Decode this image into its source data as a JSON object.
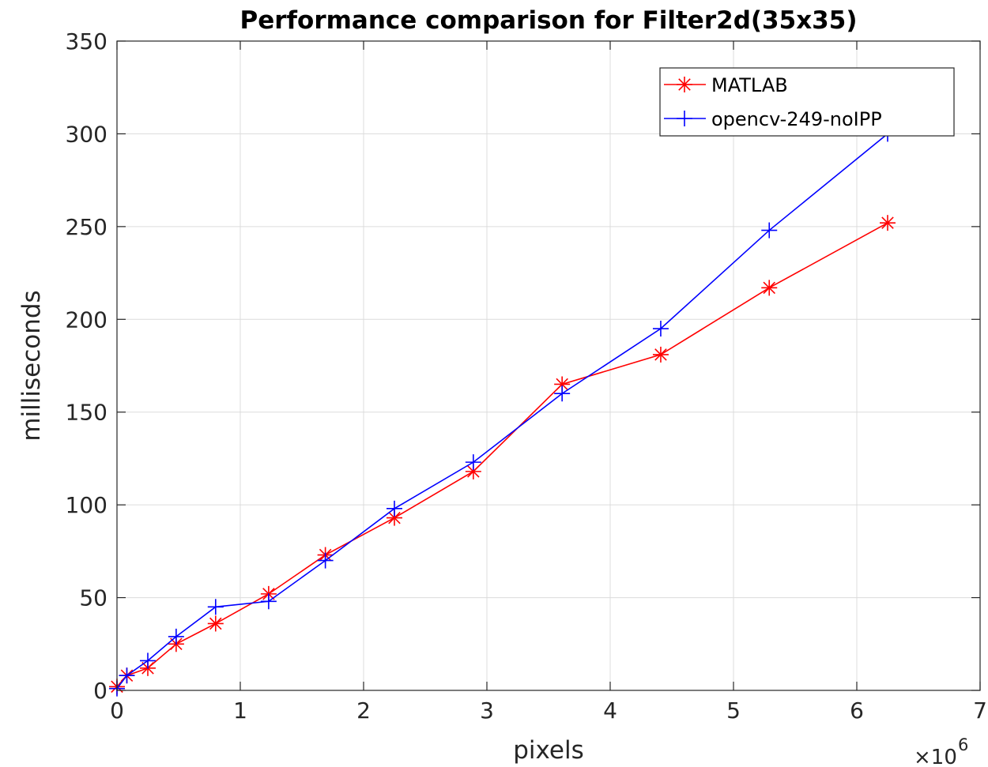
{
  "chart_data": {
    "type": "line",
    "title": "Performance comparison for Filter2d(35x35)",
    "xlabel": "pixels",
    "ylabel": "milliseconds",
    "x_exponent_label": {
      "base": "×10",
      "power": "6"
    },
    "xlim": [
      0,
      7
    ],
    "ylim": [
      0,
      350
    ],
    "xticks": [
      0,
      1,
      2,
      3,
      4,
      5,
      6,
      7
    ],
    "yticks": [
      0,
      50,
      100,
      150,
      200,
      250,
      300,
      350
    ],
    "grid": true,
    "legend_position": "top-right",
    "series": [
      {
        "name": "MATLAB",
        "color": "#ff0000",
        "marker": "asterisk",
        "x": [
          0.0,
          0.08,
          0.25,
          0.48,
          0.8,
          1.23,
          1.69,
          2.25,
          2.89,
          3.61,
          4.41,
          5.29,
          6.25
        ],
        "y": [
          2,
          8,
          12,
          25,
          36,
          52,
          73,
          93,
          118,
          165,
          181,
          217,
          252
        ]
      },
      {
        "name": "opencv-249-noIPP",
        "color": "#0000ff",
        "marker": "plus",
        "x": [
          0.0,
          0.08,
          0.25,
          0.48,
          0.8,
          1.23,
          1.69,
          2.25,
          2.89,
          3.61,
          4.41,
          5.29,
          6.25
        ],
        "y": [
          1,
          8,
          16,
          29,
          45,
          48,
          70,
          98,
          123,
          160,
          195,
          248,
          300
        ]
      }
    ]
  }
}
